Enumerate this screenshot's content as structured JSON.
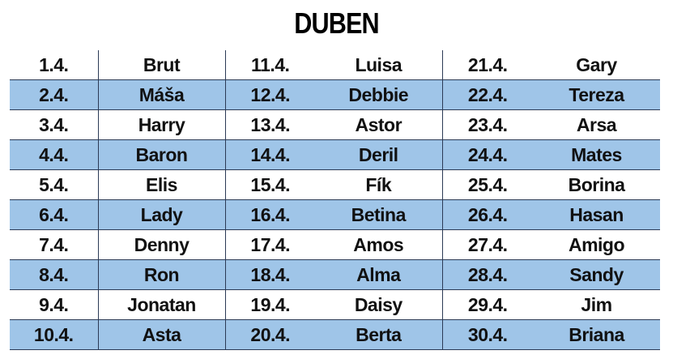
{
  "title": "DUBEN",
  "table": {
    "rows": [
      [
        "1.4.",
        "Brut",
        "11.4.",
        "Luisa",
        "21.4.",
        "Gary"
      ],
      [
        "2.4.",
        "Máša",
        "12.4.",
        "Debbie",
        "22.4.",
        "Tereza"
      ],
      [
        "3.4.",
        "Harry",
        "13.4.",
        "Astor",
        "23.4.",
        "Arsa"
      ],
      [
        "4.4.",
        "Baron",
        "14.4.",
        "Deril",
        "24.4.",
        "Mates"
      ],
      [
        "5.4.",
        "Elis",
        "15.4.",
        "Fík",
        "25.4.",
        "Borina"
      ],
      [
        "6.4.",
        "Lady",
        "16.4.",
        "Betina",
        "26.4.",
        "Hasan"
      ],
      [
        "7.4.",
        "Denny",
        "17.4.",
        "Amos",
        "27.4.",
        "Amigo"
      ],
      [
        "8.4.",
        "Ron",
        "18.4.",
        "Alma",
        "28.4.",
        "Sandy"
      ],
      [
        "9.4.",
        "Jonatan",
        "19.4.",
        "Daisy",
        "29.4.",
        "Jim"
      ],
      [
        "10.4.",
        "Asta",
        "20.4.",
        "Berta",
        "30.4.",
        "Briana"
      ]
    ]
  }
}
